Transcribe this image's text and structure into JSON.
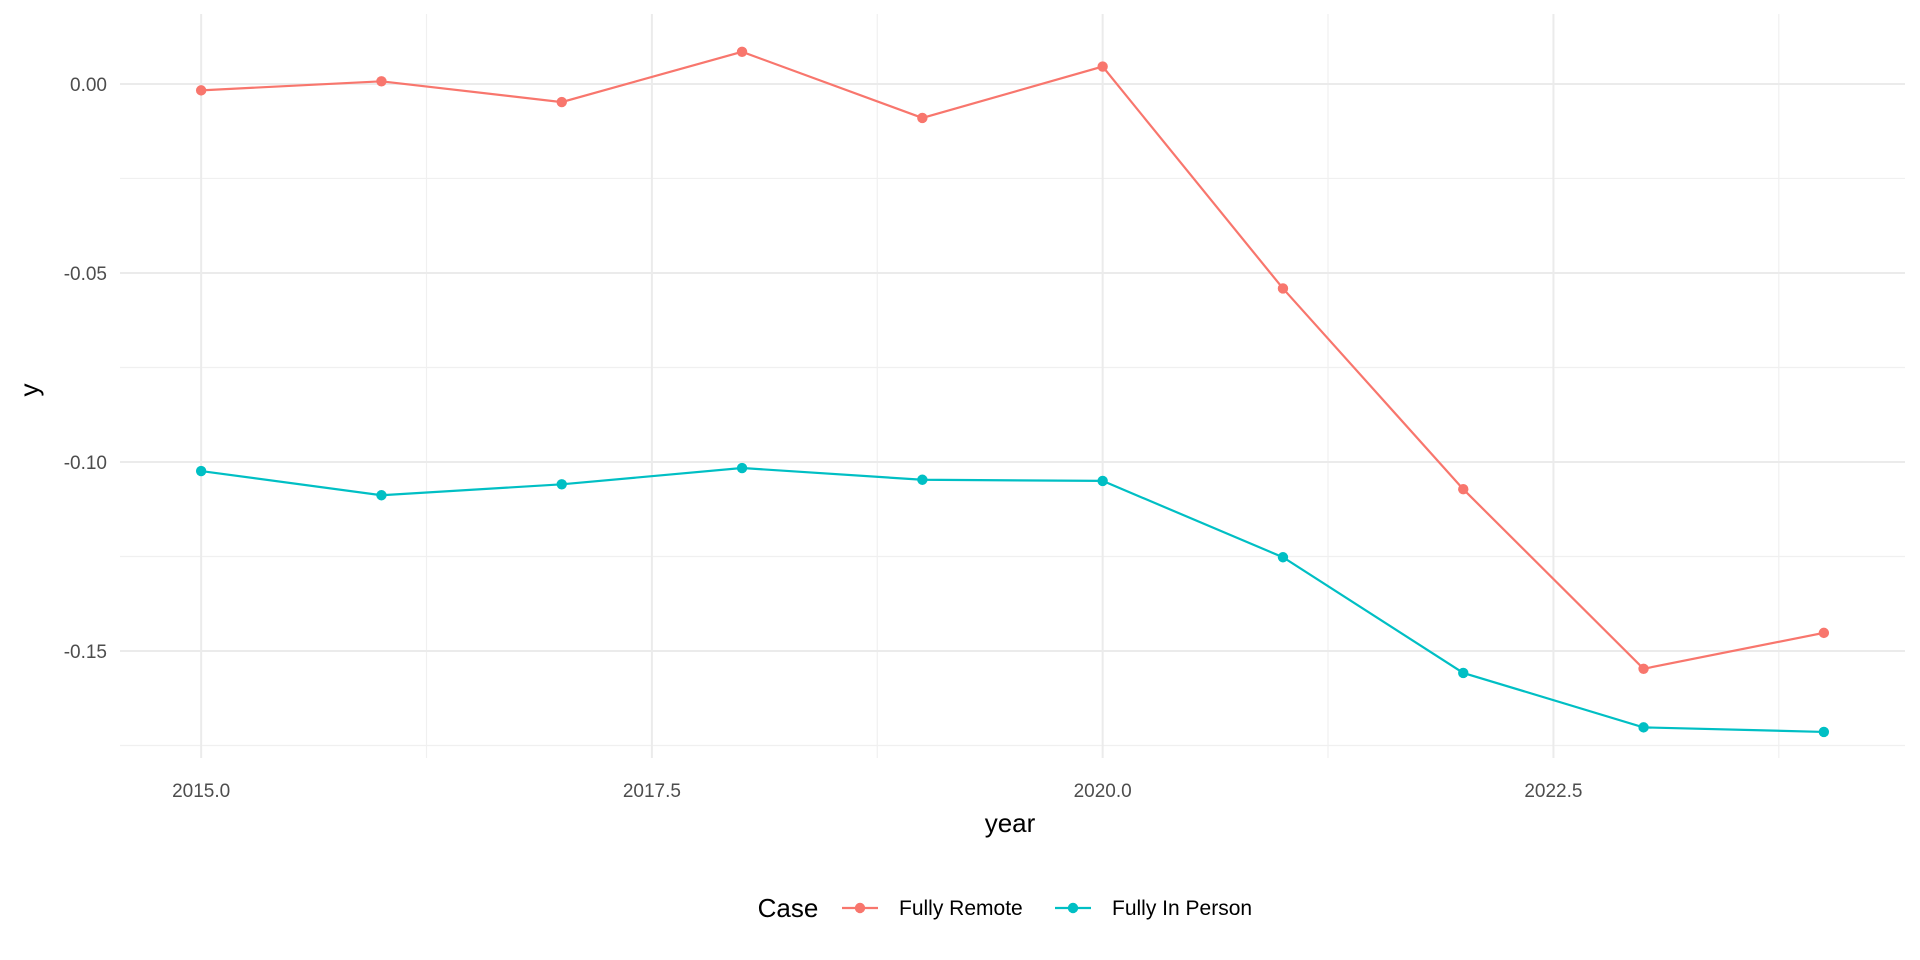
{
  "chart_data": {
    "type": "line",
    "title": "",
    "xlabel": "year",
    "ylabel": "y",
    "xlim": [
      2014.55,
      2024.45
    ],
    "ylim": [
      -0.1783,
      0.0185
    ],
    "x_ticks": [
      2015.0,
      2017.5,
      2020.0,
      2022.5
    ],
    "x_tick_labels": [
      "2015.0",
      "2017.5",
      "2020.0",
      "2022.5"
    ],
    "y_ticks": [
      0.0,
      -0.05,
      -0.1,
      -0.15
    ],
    "y_tick_labels": [
      "0.00",
      "-0.05",
      "-0.10",
      "-0.15"
    ],
    "grid": true,
    "legend": {
      "title": "Case",
      "position": "bottom"
    },
    "x": [
      2015,
      2016,
      2017,
      2018,
      2019,
      2020,
      2021,
      2022,
      2023,
      2024
    ],
    "series": [
      {
        "name": "Fully Remote",
        "color": "#F8766D",
        "values": [
          -0.0017,
          0.0007,
          -0.0048,
          0.0085,
          -0.009,
          0.0046,
          -0.0541,
          -0.1072,
          -0.1547,
          -0.1452
        ]
      },
      {
        "name": "Fully In Person",
        "color": "#00BFC4",
        "values": [
          -0.1024,
          -0.1088,
          -0.1059,
          -0.1016,
          -0.1047,
          -0.105,
          -0.1252,
          -0.1558,
          -0.1702,
          -0.1714
        ]
      }
    ]
  }
}
